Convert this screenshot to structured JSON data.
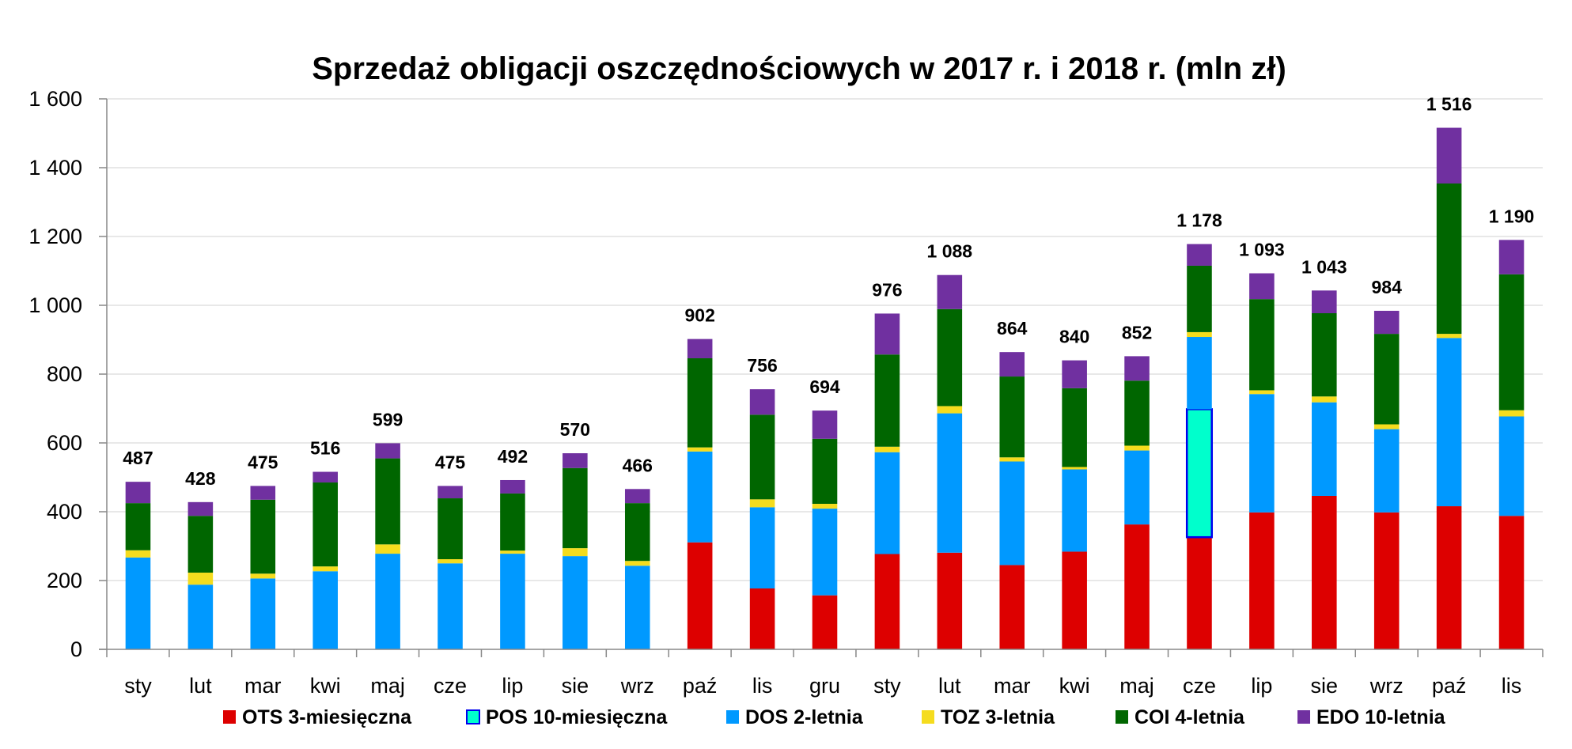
{
  "chart_data": {
    "type": "bar",
    "stacked": true,
    "title": "Sprzedaż obligacji oszczędnościowych w 2017 r. i 2018 r.  (mln zł)",
    "xlabel": "",
    "ylabel": "",
    "ylim": [
      0,
      1600
    ],
    "yticks": [
      0,
      200,
      400,
      600,
      800,
      1000,
      1200,
      1400,
      1600
    ],
    "ytick_labels": [
      "0",
      "200",
      "400",
      "600",
      "800",
      "1 000",
      "1 200",
      "1 400",
      "1 600"
    ],
    "grid": true,
    "legend_position": "bottom",
    "categories": [
      "sty",
      "lut",
      "mar",
      "kwi",
      "maj",
      "cze",
      "lip",
      "sie",
      "wrz",
      "paź",
      "lis",
      "gru",
      "sty",
      "lut",
      "mar",
      "kwi",
      "maj",
      "cze",
      "lip",
      "sie",
      "wrz",
      "paź",
      "lis"
    ],
    "totals": [
      487,
      428,
      475,
      516,
      599,
      475,
      492,
      570,
      466,
      902,
      756,
      694,
      976,
      1088,
      864,
      840,
      852,
      1178,
      1093,
      1043,
      984,
      1516,
      1190
    ],
    "total_labels": [
      "487",
      "428",
      "475",
      "516",
      "599",
      "475",
      "492",
      "570",
      "466",
      "902",
      "756",
      "694",
      "976",
      "1 088",
      "864",
      "840",
      "852",
      "1 178",
      "1 093",
      "1 043",
      "984",
      "1 516",
      "1 190"
    ],
    "series": [
      {
        "name": "OTS 3-miesięczna",
        "color": "#dd0000",
        "values": [
          0,
          0,
          0,
          0,
          0,
          0,
          0,
          0,
          0,
          311,
          177,
          157,
          277,
          281,
          245,
          284,
          363,
          326,
          398,
          446,
          398,
          416,
          388
        ]
      },
      {
        "name": "POS 10-miesięczna",
        "color": "#00ffcc",
        "border": "#0000ee",
        "label_color": "#0000cc",
        "values": [
          0,
          0,
          0,
          0,
          0,
          0,
          0,
          0,
          0,
          0,
          0,
          0,
          0,
          0,
          0,
          0,
          0,
          372,
          0,
          0,
          0,
          0,
          0
        ]
      },
      {
        "name": "DOS 2-letnia",
        "color": "#0099ff",
        "values": [
          267,
          188,
          206,
          227,
          278,
          250,
          278,
          271,
          243,
          264,
          236,
          252,
          296,
          405,
          301,
          239,
          215,
          210,
          344,
          272,
          242,
          489,
          289
        ]
      },
      {
        "name": "TOZ 3-letnia",
        "color": "#f5dc1e",
        "values": [
          21,
          35,
          14,
          14,
          27,
          12,
          9,
          23,
          14,
          12,
          23,
          14,
          16,
          21,
          12,
          7,
          14,
          14,
          11,
          17,
          14,
          12,
          18
        ]
      },
      {
        "name": "COI 4-letnia",
        "color": "#006600",
        "values": [
          137,
          165,
          215,
          244,
          250,
          177,
          166,
          233,
          168,
          259,
          246,
          189,
          268,
          282,
          235,
          229,
          189,
          193,
          265,
          242,
          263,
          437,
          395
        ]
      },
      {
        "name": "EDO 10-letnia",
        "color": "#7030a0",
        "values": [
          62,
          40,
          40,
          31,
          44,
          36,
          39,
          43,
          41,
          56,
          74,
          82,
          119,
          99,
          71,
          81,
          71,
          63,
          75,
          66,
          67,
          162,
          100
        ]
      }
    ]
  }
}
